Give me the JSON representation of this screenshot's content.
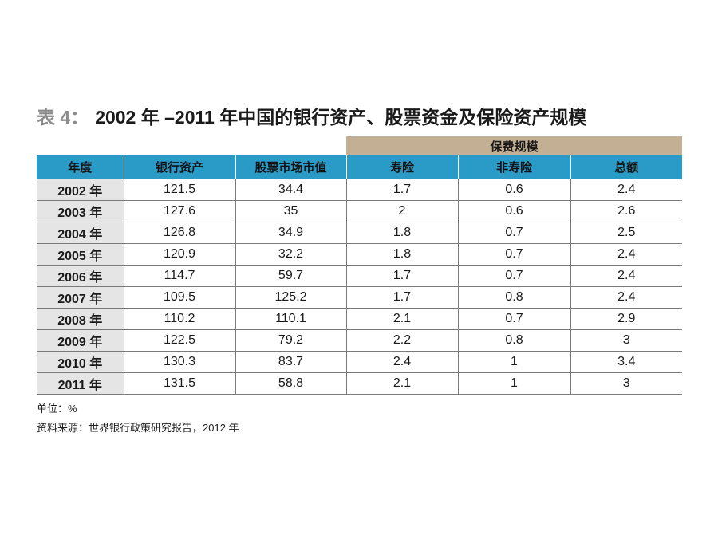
{
  "title": {
    "prefix": "表 4：",
    "text": "2002 年 –2011 年中国的银行资产、股票资金及保险资产规模"
  },
  "table": {
    "group_header": "保费规模",
    "columns": [
      "年度",
      "银行资产",
      "股票市场市值",
      "寿险",
      "非寿险",
      "总额"
    ],
    "rows": [
      [
        "2002 年",
        "121.5",
        "34.4",
        "1.7",
        "0.6",
        "2.4"
      ],
      [
        "2003 年",
        "127.6",
        "35",
        "2",
        "0.6",
        "2.6"
      ],
      [
        "2004 年",
        "126.8",
        "34.9",
        "1.8",
        "0.7",
        "2.5"
      ],
      [
        "2005 年",
        "120.9",
        "32.2",
        "1.8",
        "0.7",
        "2.4"
      ],
      [
        "2006 年",
        "114.7",
        "59.7",
        "1.7",
        "0.7",
        "2.4"
      ],
      [
        "2007 年",
        "109.5",
        "125.2",
        "1.7",
        "0.8",
        "2.4"
      ],
      [
        "2008 年",
        "110.2",
        "110.1",
        "2.1",
        "0.7",
        "2.9"
      ],
      [
        "2009 年",
        "122.5",
        "79.2",
        "2.2",
        "0.8",
        "3"
      ],
      [
        "2010 年",
        "130.3",
        "83.7",
        "2.4",
        "1",
        "3.4"
      ],
      [
        "2011 年",
        "131.5",
        "58.8",
        "2.1",
        "1",
        "3"
      ]
    ]
  },
  "footer": {
    "unit": "单位：%",
    "source": "资料来源：世界银行政策研究报告，2012 年"
  },
  "colors": {
    "header_bg": "#2a9bc6",
    "group_header_bg": "#c2af94",
    "year_cell_bg": "#e5e5e5",
    "title_prefix": "#8c8c8c"
  }
}
